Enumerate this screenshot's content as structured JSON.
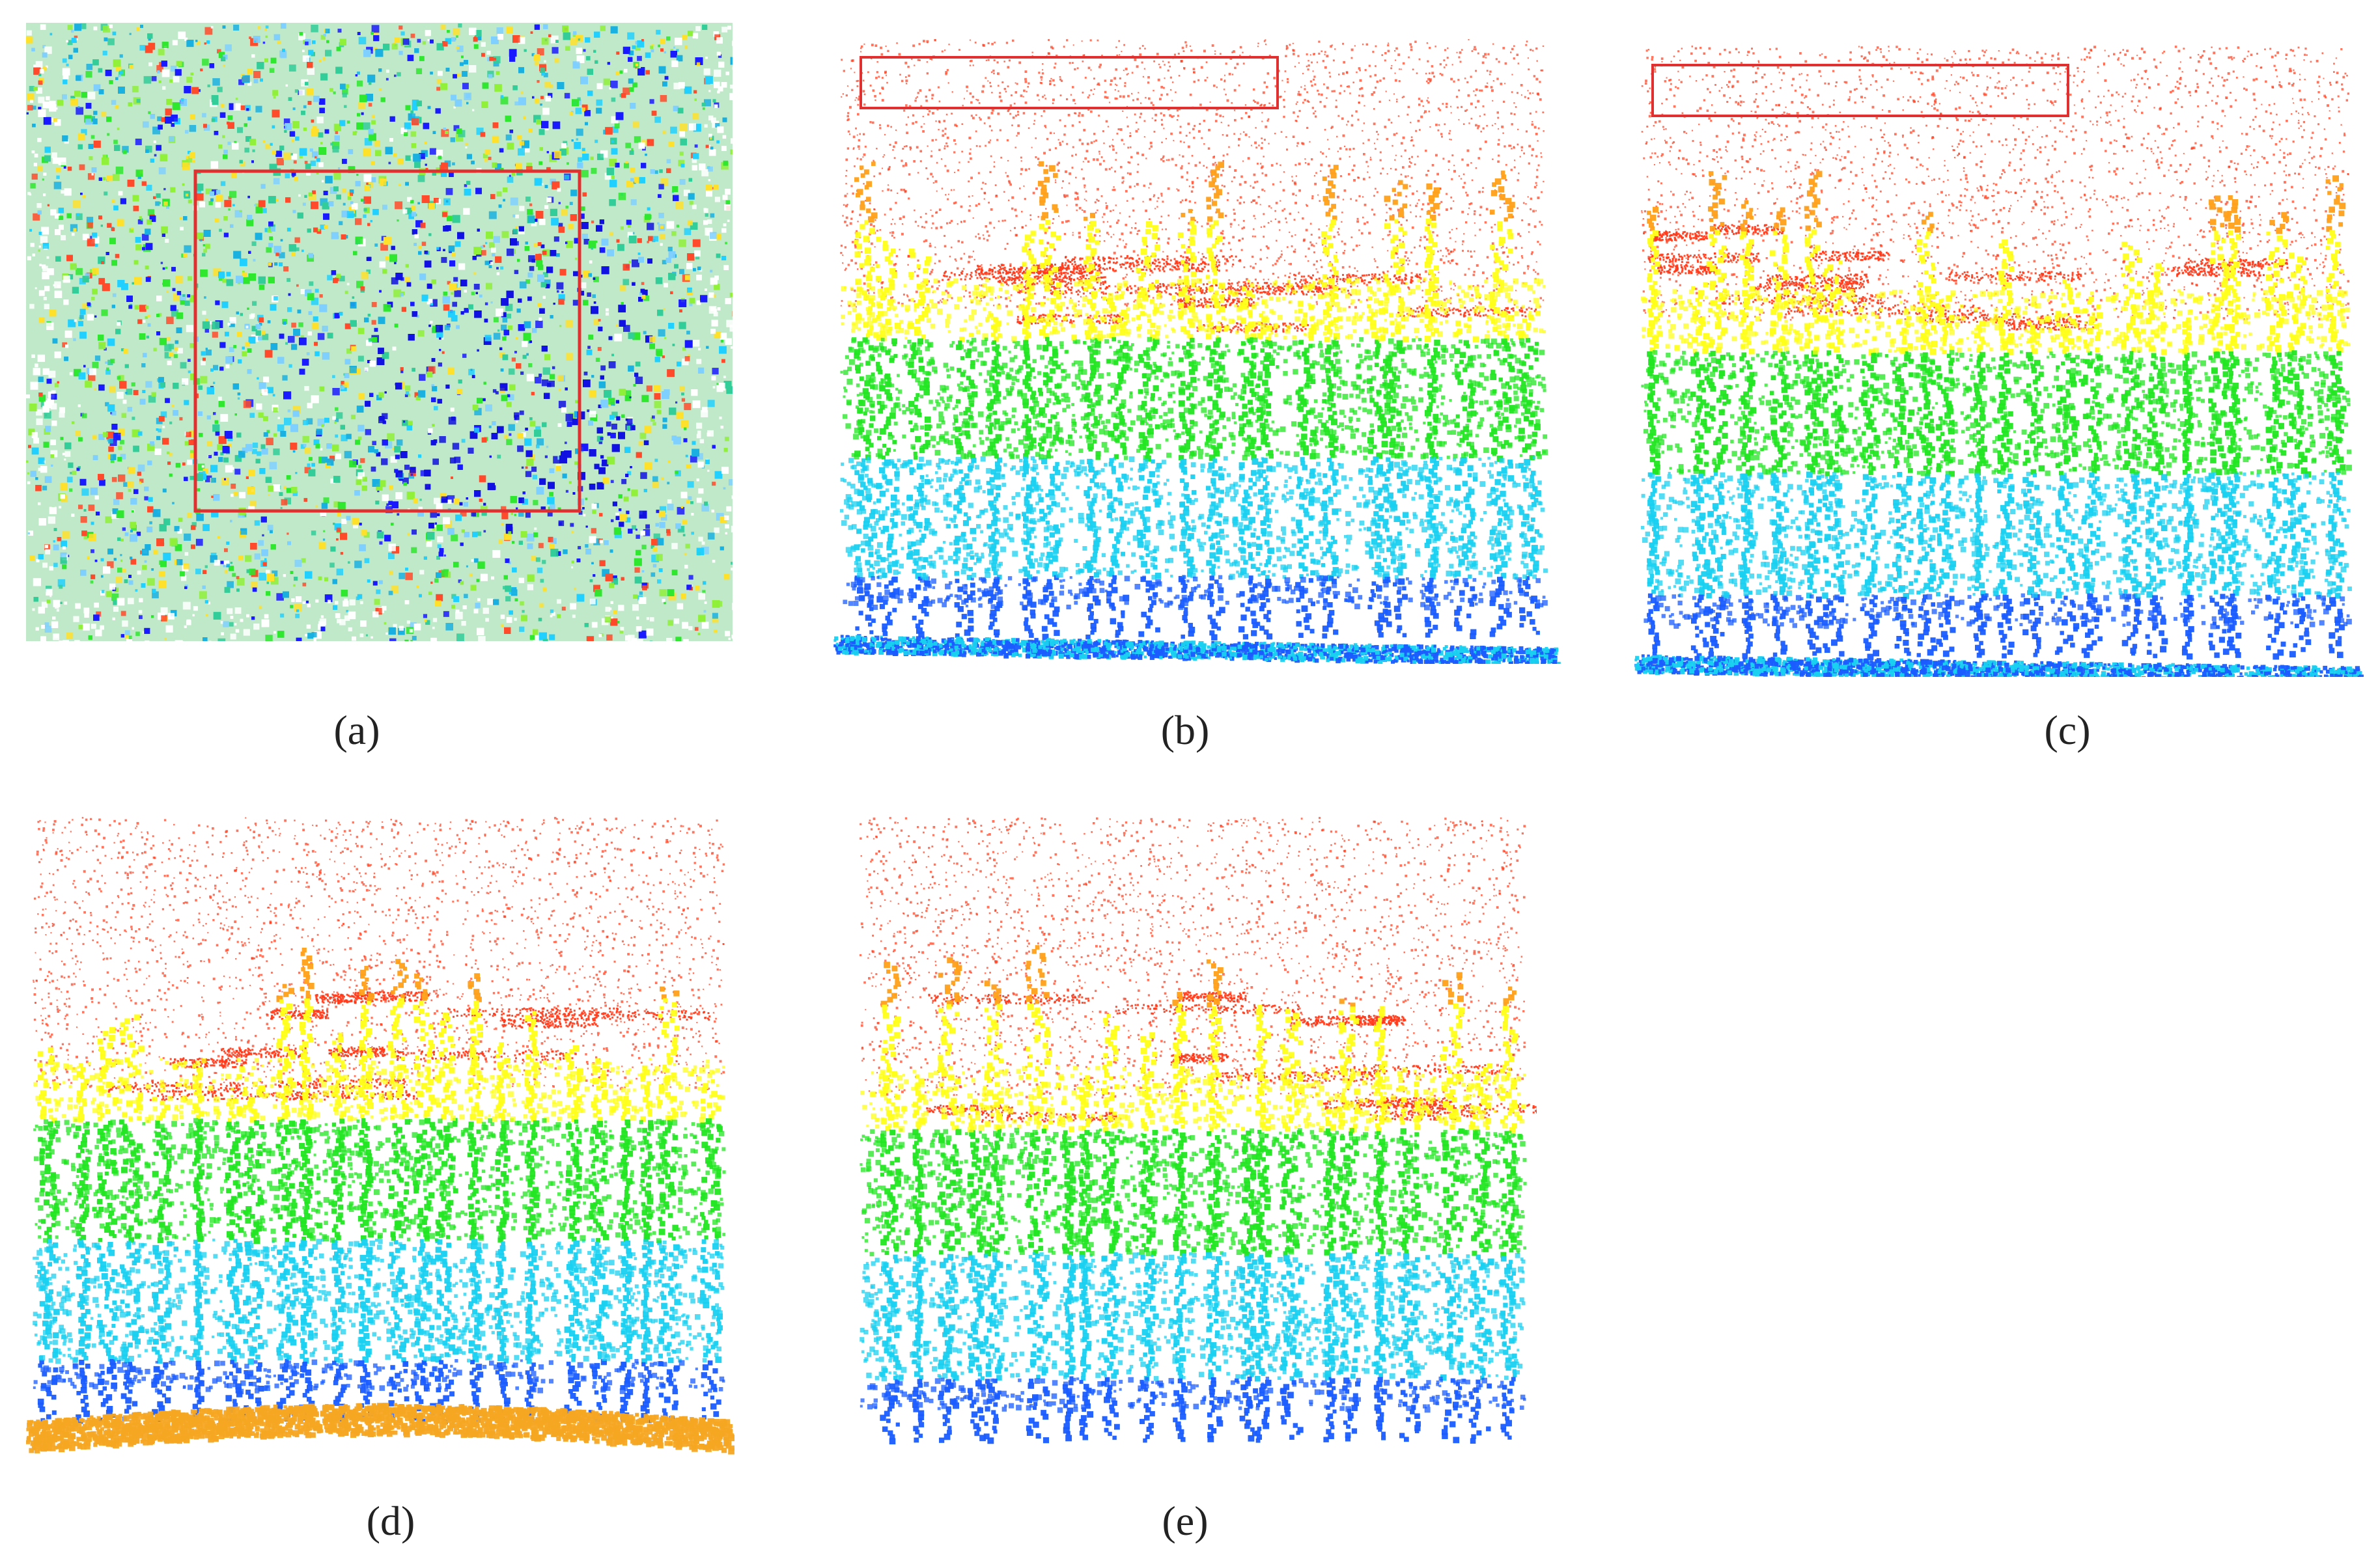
{
  "figure": {
    "panels": [
      {
        "id": "a",
        "label": "(a)",
        "view": "top-view point cloud",
        "highlight_box": true
      },
      {
        "id": "b",
        "label": "(b)",
        "view": "side-view point cloud with ground",
        "highlight_box": true
      },
      {
        "id": "c",
        "label": "(c)",
        "view": "side-view point cloud with ground",
        "highlight_box": true
      },
      {
        "id": "d",
        "label": "(d)",
        "view": "side-view point cloud, ground classified",
        "highlight_box": false
      },
      {
        "id": "e",
        "label": "(e)",
        "view": "side-view point cloud, ground removed",
        "highlight_box": false
      }
    ]
  },
  "colors": {
    "highlight_box": "#e03030",
    "height_low": "#1a5cff",
    "height_cyan": "#19d0f0",
    "height_green": "#22e622",
    "height_yellow": "#ffff1a",
    "height_orange": "#ffa01a",
    "height_high": "#ff3a1a",
    "ground_class": "#f5a623"
  }
}
